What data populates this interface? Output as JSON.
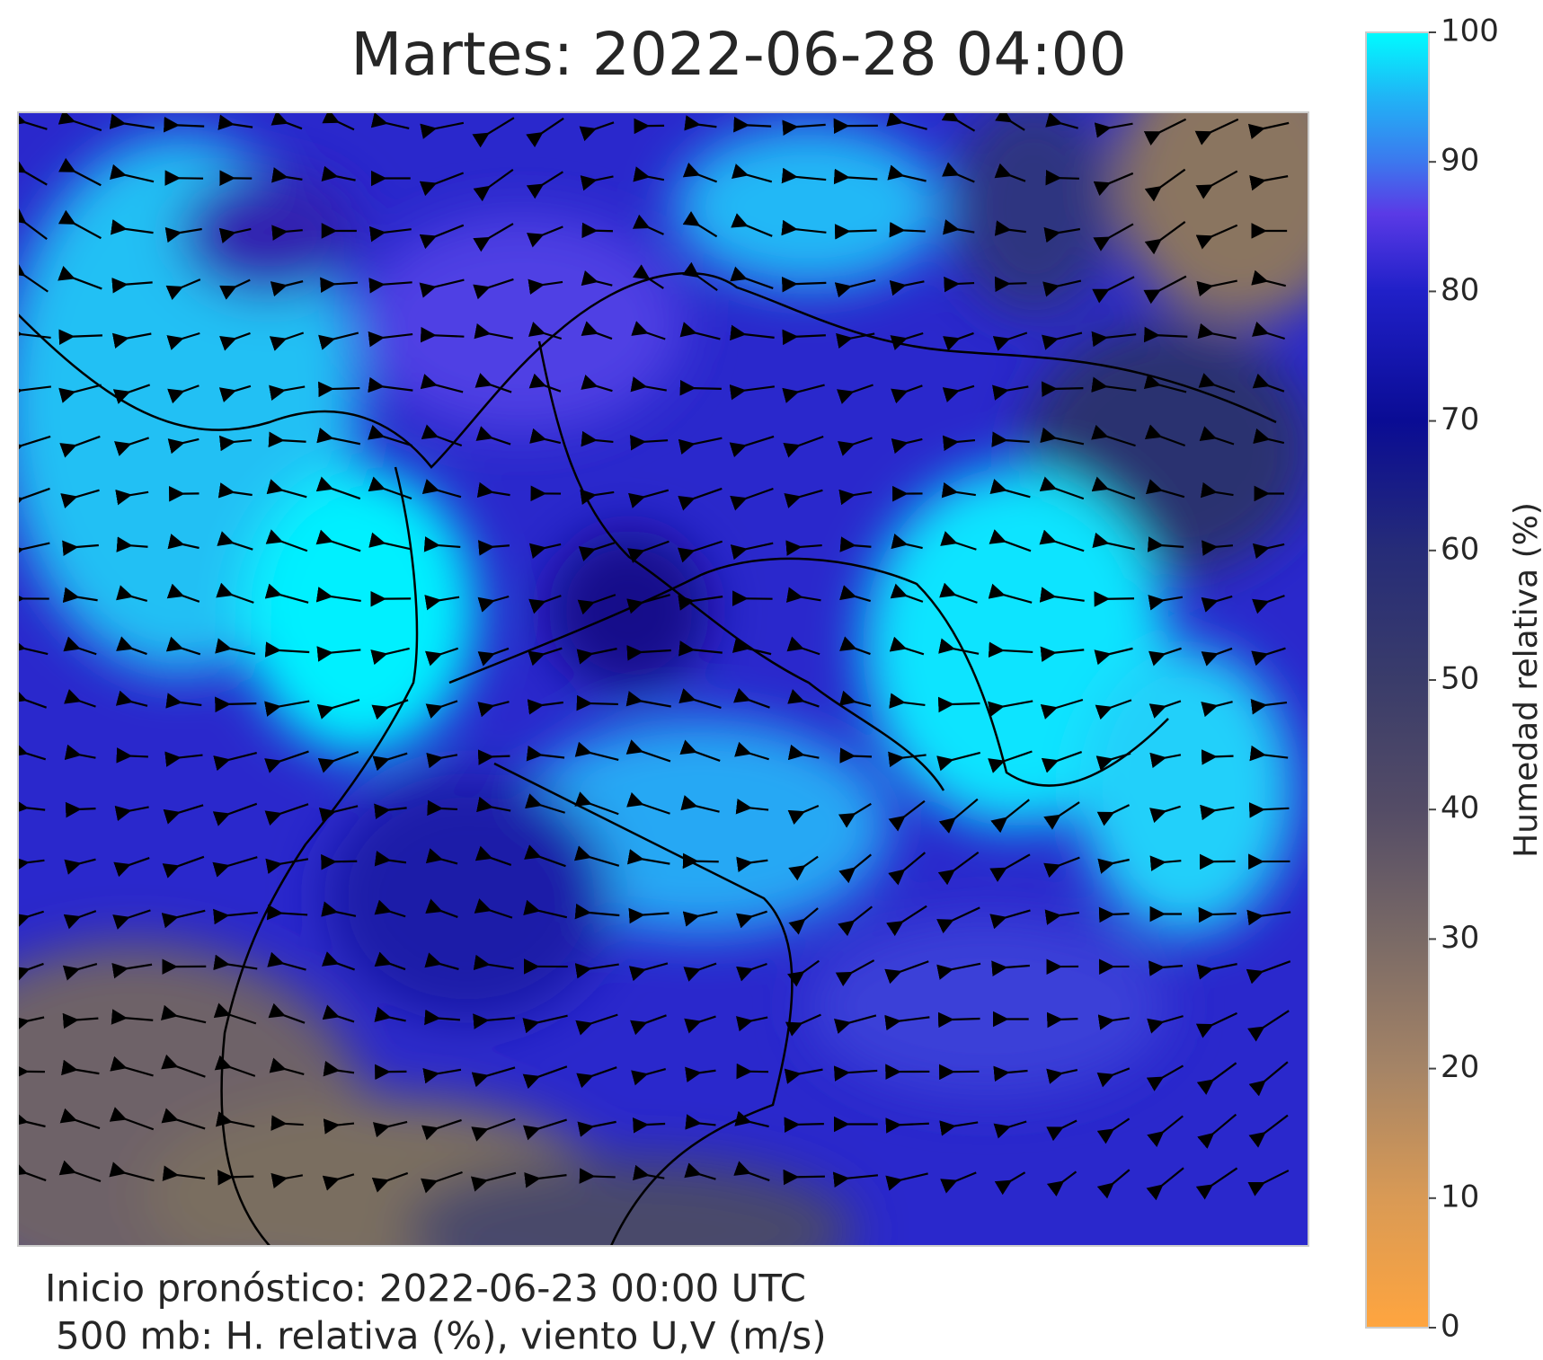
{
  "title": "Martes: 2022-06-28 04:00",
  "footer": {
    "line1": "Inicio pronóstico: 2022-06-23 00:00 UTC",
    "line2": "500 mb: H. relativa (%), viento U,V (m/s)"
  },
  "colorbar": {
    "label": "Humedad relativa (%)",
    "lim": [
      0,
      100
    ],
    "ticks": [
      0,
      10,
      20,
      30,
      40,
      50,
      60,
      70,
      80,
      90,
      100
    ]
  }
}
